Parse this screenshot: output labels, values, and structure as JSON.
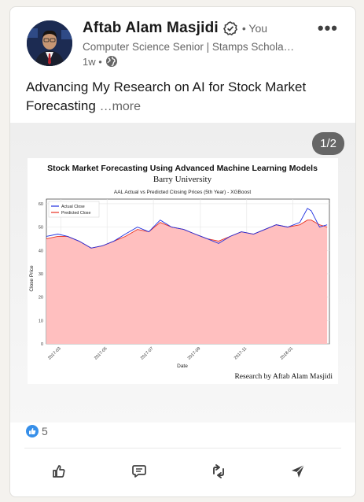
{
  "post": {
    "author_name": "Aftab Alam Masjidi",
    "you_label": "• You",
    "headline": "Computer Science Senior | Stamps Schola…",
    "time": "1w •",
    "text": "Advancing My Research on AI for Stock Market Forecasting",
    "see_more": "…more",
    "media_counter": "1/2",
    "reactions_count": "5"
  },
  "figure": {
    "title": "Stock Market Forecasting Using Advanced Machine Learning Models",
    "subtitle": "Barry University",
    "footer": "Research by Aftab Alam Masjidi"
  },
  "chart_data": {
    "type": "line",
    "title": "AAL Actual vs Predicted Closing Prices (5th Year) - XGBoost",
    "xlabel": "Date",
    "ylabel": "Close Price",
    "ylim": [
      0,
      62
    ],
    "xlim": [
      "2017-02-10",
      "2018-02-18"
    ],
    "yticks": [
      0,
      10,
      20,
      30,
      40,
      50,
      60
    ],
    "xticks": [
      "2017-03",
      "2017-05",
      "2017-07",
      "2017-09",
      "2017-11",
      "2018-01"
    ],
    "legend_position": "top-left",
    "grid": true,
    "x": [
      "2017-02-10",
      "2017-02-25",
      "2017-03-10",
      "2017-03-25",
      "2017-04-10",
      "2017-04-25",
      "2017-05-10",
      "2017-05-25",
      "2017-06-10",
      "2017-06-25",
      "2017-07-10",
      "2017-07-25",
      "2017-08-10",
      "2017-08-25",
      "2017-09-10",
      "2017-09-25",
      "2017-10-10",
      "2017-10-25",
      "2017-11-10",
      "2017-11-25",
      "2017-12-10",
      "2017-12-25",
      "2018-01-10",
      "2018-01-20",
      "2018-01-25",
      "2018-02-05",
      "2018-02-15"
    ],
    "series": [
      {
        "name": "Actual Close",
        "color": "#1f2fe0",
        "values": [
          46,
          47,
          46,
          44,
          41,
          42,
          44,
          47,
          50,
          48,
          53,
          50,
          49,
          47,
          45,
          43,
          46,
          48,
          47,
          49,
          51,
          50,
          52,
          58,
          57,
          50,
          51
        ]
      },
      {
        "name": "Predicted Close",
        "color": "#e83020",
        "values": [
          45,
          46,
          46,
          44,
          41,
          42,
          44,
          46,
          49,
          48,
          52,
          50,
          49,
          47,
          45,
          44,
          46,
          48,
          47,
          49,
          51,
          50,
          51,
          53,
          53,
          51,
          50
        ]
      }
    ],
    "fill_color": "#ffbfbf"
  },
  "colors": {
    "reaction_blue": "#378fe9",
    "icon_gray": "#404040"
  },
  "icons": [
    "verified-badge-icon",
    "globe-icon",
    "more-icon",
    "like-reaction-icon",
    "like-icon",
    "comment-icon",
    "repost-icon",
    "send-icon"
  ]
}
